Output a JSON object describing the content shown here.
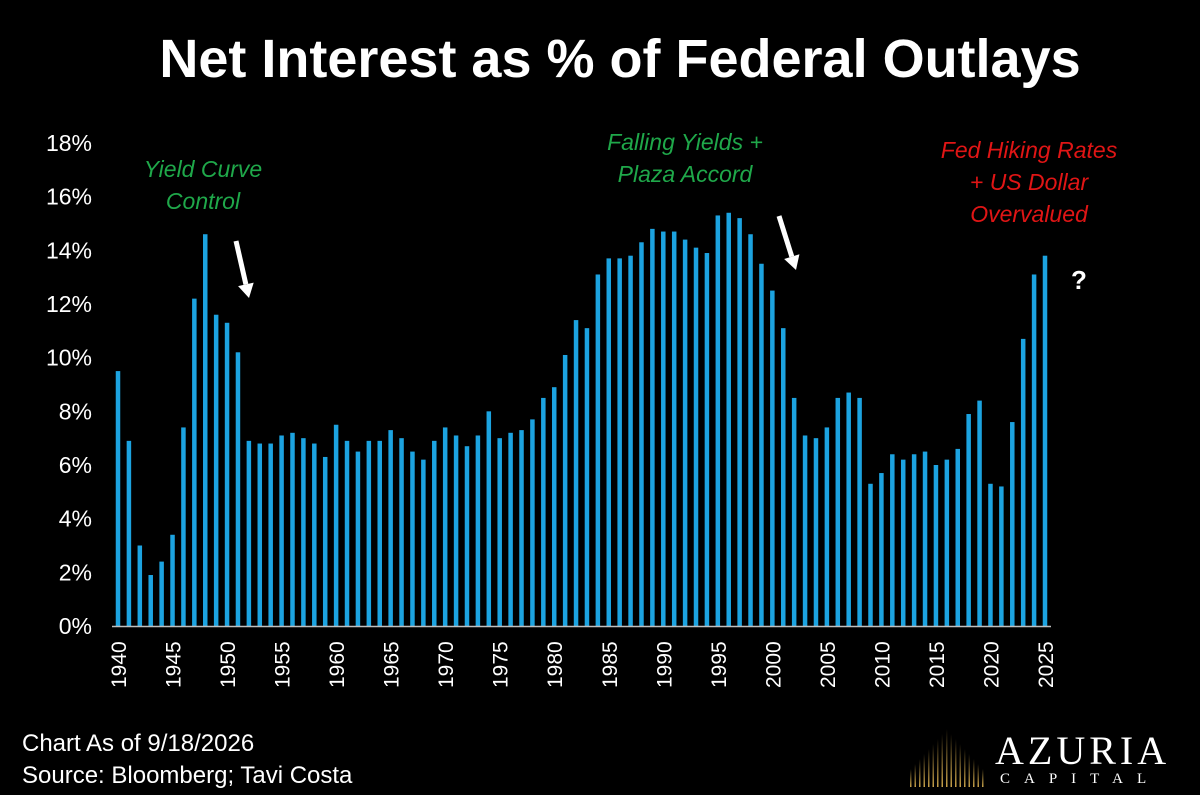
{
  "chart_data": {
    "type": "bar",
    "title": "Net Interest as % of Federal Outlays",
    "xlabel": "",
    "ylabel": "",
    "ylim": [
      0,
      18
    ],
    "y_ticks": [
      "0%",
      "2%",
      "4%",
      "6%",
      "8%",
      "10%",
      "12%",
      "14%",
      "16%",
      "18%"
    ],
    "x_tick_labels": [
      "1940",
      "1945",
      "1950",
      "1955",
      "1960",
      "1965",
      "1970",
      "1975",
      "1980",
      "1985",
      "1990",
      "1995",
      "2000",
      "2005",
      "2010",
      "2015",
      "2020",
      "2025"
    ],
    "grid": false,
    "bar_color": "#1ca3e0",
    "categories": [
      1940,
      1941,
      1942,
      1943,
      1944,
      1945,
      1946,
      1947,
      1948,
      1949,
      1950,
      1951,
      1952,
      1953,
      1954,
      1955,
      1956,
      1957,
      1958,
      1959,
      1960,
      1961,
      1962,
      1963,
      1964,
      1965,
      1966,
      1967,
      1968,
      1969,
      1970,
      1971,
      1972,
      1973,
      1974,
      1975,
      1976,
      1977,
      1978,
      1979,
      1980,
      1981,
      1982,
      1983,
      1984,
      1985,
      1986,
      1987,
      1988,
      1989,
      1990,
      1991,
      1992,
      1993,
      1994,
      1995,
      1996,
      1997,
      1998,
      1999,
      2000,
      2001,
      2002,
      2003,
      2004,
      2005,
      2006,
      2007,
      2008,
      2009,
      2010,
      2011,
      2012,
      2013,
      2014,
      2015,
      2016,
      2017,
      2018,
      2019,
      2020,
      2021,
      2022,
      2023,
      2024,
      2025
    ],
    "values": [
      9.5,
      6.9,
      3.0,
      1.9,
      2.4,
      3.4,
      7.4,
      12.2,
      14.6,
      11.6,
      11.3,
      10.2,
      6.9,
      6.8,
      6.8,
      7.1,
      7.2,
      7.0,
      6.8,
      6.3,
      7.5,
      6.9,
      6.5,
      6.9,
      6.9,
      7.3,
      7.0,
      6.5,
      6.2,
      6.9,
      7.4,
      7.1,
      6.7,
      7.1,
      8.0,
      7.0,
      7.2,
      7.3,
      7.7,
      8.5,
      8.9,
      10.1,
      11.4,
      11.1,
      13.1,
      13.7,
      13.7,
      13.8,
      14.3,
      14.8,
      14.7,
      14.7,
      14.4,
      14.1,
      13.9,
      15.3,
      15.4,
      15.2,
      14.6,
      13.5,
      12.5,
      11.1,
      8.5,
      7.1,
      7.0,
      7.4,
      8.5,
      8.7,
      8.5,
      5.3,
      5.7,
      6.4,
      6.2,
      6.4,
      6.5,
      6.0,
      6.2,
      6.6,
      7.9,
      8.4,
      5.3,
      5.2,
      7.6,
      10.7,
      13.1,
      13.8
    ],
    "annotations": [
      {
        "text_lines": [
          "Yield Curve",
          "Control"
        ],
        "color": "#1fa84a"
      },
      {
        "text_lines": [
          "Falling Yields +",
          "Plaza Accord"
        ],
        "color": "#1fa84a"
      },
      {
        "text_lines": [
          "Fed Hiking Rates",
          "+ US Dollar",
          "Overvalued"
        ],
        "color": "#e01515"
      }
    ],
    "question_mark": "?"
  },
  "footer": {
    "date": "Chart As of 9/18/2026",
    "source": "Source: Bloomberg; Tavi Costa"
  },
  "logo": {
    "name": "AZURIA",
    "sub": "CAPITAL"
  }
}
